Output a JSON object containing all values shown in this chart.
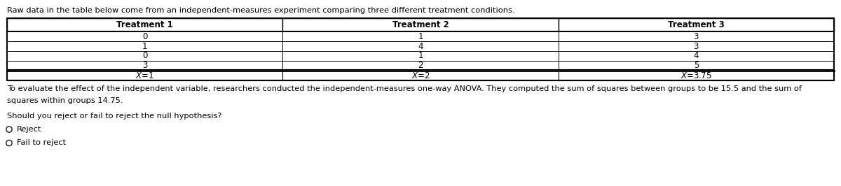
{
  "intro_text": "Raw data in the table below come from an independent-measures experiment comparing three different treatment conditions.",
  "col_headers": [
    "Treatment 1",
    "Treatment 2",
    "Treatment 3"
  ],
  "data_rows": [
    [
      "0",
      "1",
      "3"
    ],
    [
      "1",
      "4",
      "3"
    ],
    [
      "0",
      "1",
      "4"
    ],
    [
      "3",
      "2",
      "5"
    ]
  ],
  "mean_row": [
    "X =1",
    "X =2",
    "X =3.75"
  ],
  "analysis_text_line1": "To evaluate the effect of the independent variable, researchers conducted the independent-measures one-way ANOVA. They computed the sum of squares between groups to be 15.5 and the sum of",
  "analysis_text_line2": "squares within groups 14.75.",
  "question_text": "Should you reject or fail to reject the null hypothesis?",
  "options": [
    "Reject",
    "Fail to reject"
  ],
  "bg_color": "#ffffff",
  "text_color": "#000000",
  "font_size_intro": 8.2,
  "font_size_table": 8.5,
  "font_size_body": 8.2,
  "font_size_question": 8.2,
  "font_size_options": 8.2
}
